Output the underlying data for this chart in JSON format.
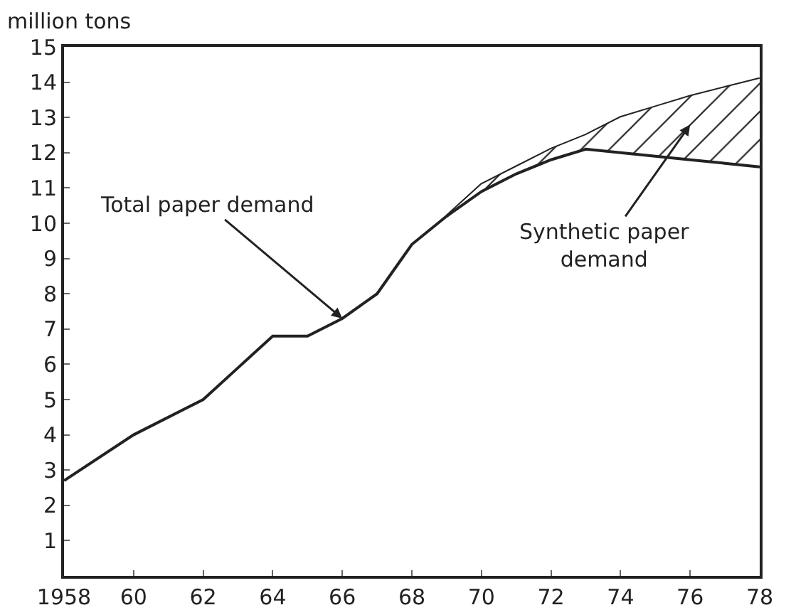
{
  "chart_data": {
    "type": "line",
    "ylabel": "million tons",
    "x": [
      1958,
      1960,
      1962,
      1963,
      1964,
      1965,
      1966,
      1967,
      1967.5,
      1968,
      1969,
      1970,
      1971,
      1972,
      1973,
      1974,
      1975,
      1976,
      1977,
      1978
    ],
    "series": [
      {
        "color": "#222222",
        "values": [
          2.7,
          4.0,
          5.0,
          5.9,
          6.8,
          6.8,
          7.3,
          8.0,
          8.7,
          9.4,
          10.2,
          11.1,
          11.6,
          12.1,
          12.5,
          13.0,
          13.3,
          13.6,
          13.85,
          14.1
        ]
      },
      {
        "type": "line",
        "color": "#222222",
        "x": [
          1969,
          1970,
          1971,
          1972,
          1973,
          1974,
          1975,
          1976,
          1977,
          1978
        ],
        "values": [
          10.2,
          10.9,
          11.4,
          11.8,
          12.1,
          12.0,
          11.9,
          11.8,
          11.7,
          11.6
        ],
        "lower": [
          10.2,
          10.9,
          11.4,
          11.8,
          12.1,
          12.0,
          11.9,
          11.8,
          11.7,
          11.6
        ],
        "upper": [
          10.2,
          11.1,
          11.6,
          12.1,
          12.5,
          13.0,
          13.3,
          13.6,
          13.85,
          14.1
        ]
      }
    ],
    "xlim": [
      1958,
      1978
    ],
    "xticks": [
      1958,
      {
        "value": 1960,
        "label": "60"
      },
      {
        "value": 1962,
        "label": "62"
      },
      {
        "value": 1964,
        "label": "64"
      },
      {
        "value": 1966,
        "label": "66"
      },
      {
        "value": 1968,
        "label": "68"
      },
      {
        "value": 1970,
        "label": "70"
      },
      {
        "value": 1972,
        "label": "72"
      },
      {
        "value": 1974,
        "label": "74"
      },
      {
        "value": 1976,
        "label": "76"
      },
      {
        "value": 1978,
        "label": "78"
      }
    ],
    "ylim": [
      0,
      15
    ],
    "yticks": [
      1,
      2,
      3,
      4,
      5,
      6,
      7,
      8,
      9,
      10,
      11,
      12,
      13,
      14,
      15
    ],
    "annotations": [
      {
        "text": "Total paper demand",
        "x": 1966,
        "y": 7.3
      },
      "Synthetic paper\ndemand"
    ],
    "grid": false,
    "marker": "none",
    "line_style": "solid"
  }
}
